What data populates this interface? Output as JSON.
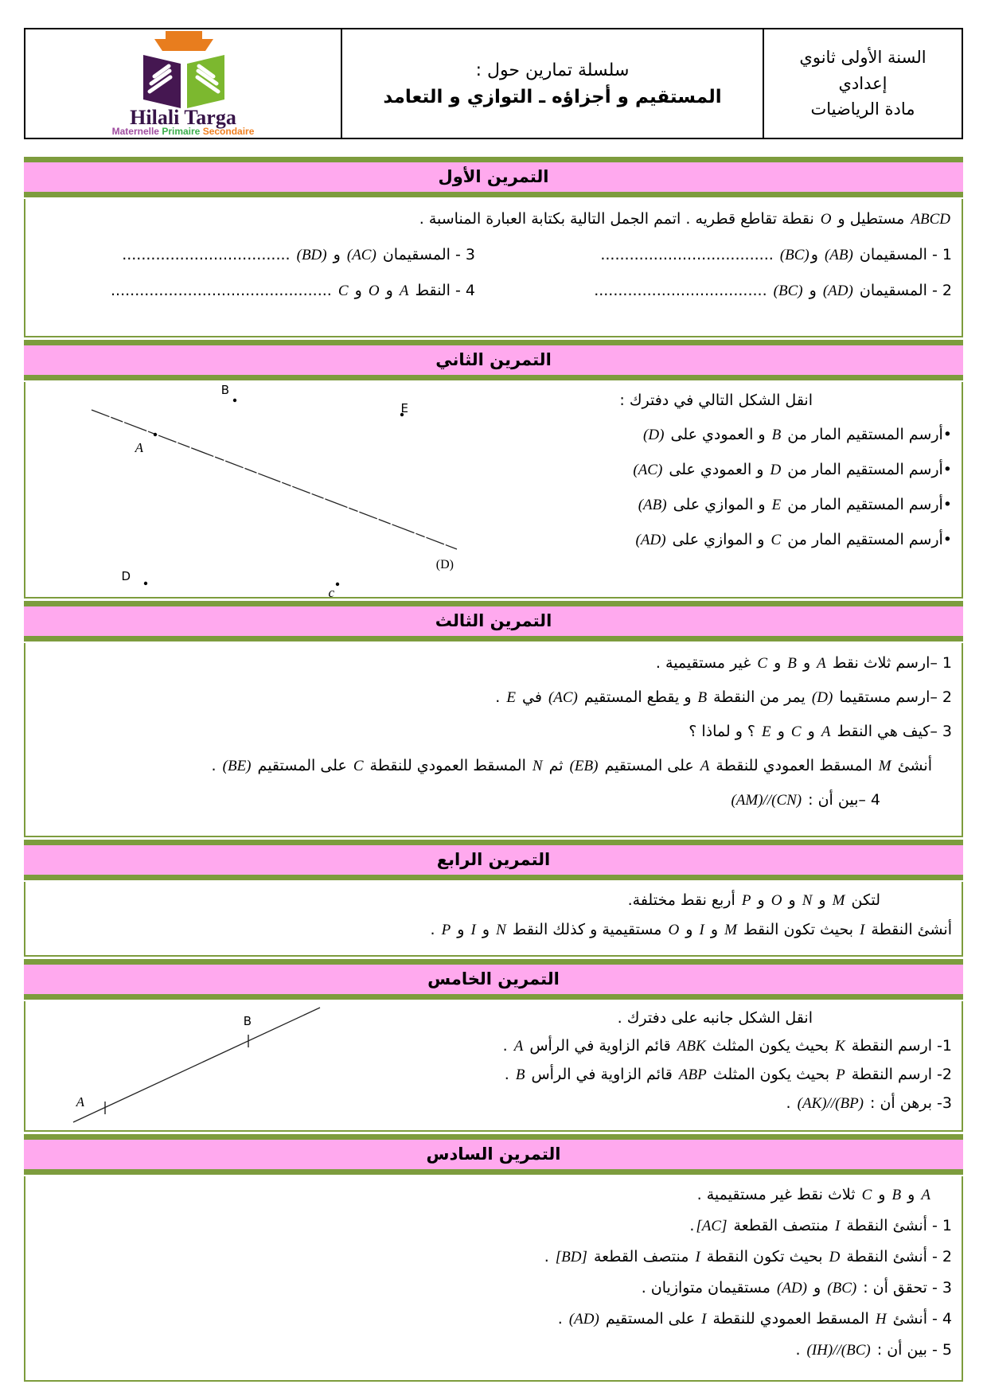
{
  "header": {
    "school": {
      "lines": [
        "السنة الأولى ثانوي",
        "إعدادي",
        "مادة الرياضيات"
      ]
    },
    "series": {
      "label": "سلسلة تمارين حول :",
      "title": "المستقيم و أجزاؤه ـ التوازي و التعامد"
    },
    "logo": {
      "name": "Hilali Targa",
      "tagline": [
        "Maternelle",
        "Primaire",
        "Secondaire"
      ]
    }
  },
  "colors": {
    "banner_pink": "#ffa9ee",
    "border_green": "#7d9c3d",
    "logo_purple": "#451751",
    "logo_green": "#7cb82f",
    "logo_orange": "#e87d1e",
    "tagline_purple": "#a04da0",
    "tagline_green": "#3bae4b",
    "tagline_orange": "#f08020"
  },
  "figures": {
    "ex2": {
      "line_label": "(D)",
      "points": {
        "A": "A",
        "B": "B",
        "C": "c",
        "D": "D",
        "E": "E"
      }
    },
    "ex5": {
      "points": {
        "A": "A",
        "B": "B"
      }
    }
  },
  "exercises": [
    {
      "title": "التمرين الأول",
      "lines": [
        {
          "seg": [
            {
              "m": "ABCD"
            },
            {
              "t": " مستطيل و "
            },
            {
              "m": "O"
            },
            {
              "t": " نقطة تقاطع قطريه . اتمم الجمل التالية بكتابة العبارة المناسبة ."
            }
          ]
        },
        {
          "cls": "split",
          "cells": [
            [
              {
                "t": "1 - المسقيمان "
              },
              {
                "m": "(AB)"
              },
              {
                "t": " و"
              },
              {
                "m": "(BC)"
              },
              {
                "t": "  ...................................."
              }
            ],
            [
              {
                "t": "3 - المسقيمان  "
              },
              {
                "m": "(AC)"
              },
              {
                "t": " و "
              },
              {
                "m": "(BD)"
              },
              {
                "t": " ..................................."
              }
            ]
          ]
        },
        {
          "cls": "split",
          "cells": [
            [
              {
                "t": "2 - المسقيمان  "
              },
              {
                "m": "(AD)"
              },
              {
                "t": " و "
              },
              {
                "m": "(BC)"
              },
              {
                "t": "  ...................................."
              }
            ],
            [
              {
                "t": "4 - النقط "
              },
              {
                "m": "A"
              },
              {
                "t": " و "
              },
              {
                "m": "O"
              },
              {
                "t": " و "
              },
              {
                "m": "C"
              },
              {
                "t": " .............................................."
              }
            ]
          ]
        }
      ]
    },
    {
      "title": "التمرين الثاني",
      "lines": [
        {
          "cls": "ind-lg",
          "seg": [
            {
              "t": "انقل الشكل التالي في دفترك :"
            }
          ]
        },
        {
          "seg": [
            {
              "t": "•أرسم المستقيم المار من "
            },
            {
              "m": "B"
            },
            {
              "t": "  و العمودي على "
            },
            {
              "m": "(D)"
            }
          ]
        },
        {
          "seg": [
            {
              "t": "•أرسم المستقيم المار من "
            },
            {
              "m": "D"
            },
            {
              "t": "  و العمودي على "
            },
            {
              "m": "(AC)"
            }
          ]
        },
        {
          "seg": [
            {
              "t": "•أرسم المستقيم المار من "
            },
            {
              "m": "E"
            },
            {
              "t": "  و الموازي على "
            },
            {
              "m": "(AB)"
            }
          ]
        },
        {
          "seg": [
            {
              "t": "•أرسم المستقيم المار من "
            },
            {
              "m": "C"
            },
            {
              "t": "  و الموازي على "
            },
            {
              "m": "(AD)"
            }
          ]
        }
      ]
    },
    {
      "title": "التمرين الثالث",
      "lines": [
        {
          "seg": [
            {
              "t": "1 –ارسم ثلاث نقط "
            },
            {
              "m": "A"
            },
            {
              "t": " و "
            },
            {
              "m": "B"
            },
            {
              "t": " و "
            },
            {
              "m": "C"
            },
            {
              "t": " غير مستقيمية ."
            }
          ]
        },
        {
          "seg": [
            {
              "t": "2 –ارسم مستقيما "
            },
            {
              "m": "(D)"
            },
            {
              "t": " يمر من النقطة "
            },
            {
              "m": "B"
            },
            {
              "t": " و يقطع المستقيم "
            },
            {
              "m": "(AC)"
            },
            {
              "t": " في "
            },
            {
              "m": "E"
            },
            {
              "t": " ."
            }
          ]
        },
        {
          "seg": [
            {
              "t": "3 –كيف هي النقط "
            },
            {
              "m": "A"
            },
            {
              "t": " و "
            },
            {
              "m": "C"
            },
            {
              "t": " و "
            },
            {
              "m": "E"
            },
            {
              "t": " ؟ و لماذا ؟"
            }
          ]
        },
        {
          "cls": "ind-sm",
          "seg": [
            {
              "t": "أنشئ "
            },
            {
              "m": "M"
            },
            {
              "t": " المسقط العمودي للنقطة "
            },
            {
              "m": "A"
            },
            {
              "t": " على المستقيم "
            },
            {
              "m": "(EB)"
            },
            {
              "t": " ثم "
            },
            {
              "m": "N"
            },
            {
              "t": " المسقط العمودي للنقطة "
            },
            {
              "m": "C"
            },
            {
              "t": " على المستقيم "
            },
            {
              "m": "(BE)"
            },
            {
              "t": " ."
            }
          ]
        },
        {
          "cls": "ind-md",
          "seg": [
            {
              "t": "4 –بين أن : "
            },
            {
              "m": "(AM)//(CN)"
            }
          ]
        }
      ]
    },
    {
      "title": "التمرين الرابع",
      "lines": [
        {
          "cls": "ind-md",
          "seg": [
            {
              "t": "لتكن  "
            },
            {
              "m": "M"
            },
            {
              "t": " و "
            },
            {
              "m": "N"
            },
            {
              "t": " و "
            },
            {
              "m": "O"
            },
            {
              "t": " و "
            },
            {
              "m": "P"
            },
            {
              "t": " أربع نقط مختلفة."
            }
          ]
        },
        {
          "seg": [
            {
              "t": "أنشئ النقطة "
            },
            {
              "m": "I"
            },
            {
              "t": " بحيث تكون النقط "
            },
            {
              "m": "M"
            },
            {
              "t": " و "
            },
            {
              "m": "I"
            },
            {
              "t": " و "
            },
            {
              "m": "O"
            },
            {
              "t": " مستقيمية و كذلك النقط "
            },
            {
              "m": "N"
            },
            {
              "t": " و "
            },
            {
              "m": "I"
            },
            {
              "t": " و "
            },
            {
              "m": "P"
            },
            {
              "t": " ."
            }
          ]
        }
      ]
    },
    {
      "title": "التمرين الخامس",
      "lines": [
        {
          "cls": "ind-lg",
          "seg": [
            {
              "t": "انقل الشكل جانبه على دفترك ."
            }
          ]
        },
        {
          "seg": [
            {
              "t": "1-  ارسم النقطة "
            },
            {
              "m": "K"
            },
            {
              "t": " بحيث يكون المثلث  "
            },
            {
              "m": "ABK"
            },
            {
              "t": "  قائم الزاوية في الرأس  "
            },
            {
              "m": "A"
            },
            {
              "t": " ."
            }
          ]
        },
        {
          "seg": [
            {
              "t": "2-  ارسم النقطة "
            },
            {
              "m": "P"
            },
            {
              "t": " بحيث يكون المثلث "
            },
            {
              "m": "ABP"
            },
            {
              "t": " قائم الزاوية في الرأس  "
            },
            {
              "m": "B"
            },
            {
              "t": " ."
            }
          ]
        },
        {
          "seg": [
            {
              "t": "3- برهن أن :  "
            },
            {
              "m": "(AK)//(BP)"
            },
            {
              "t": " ."
            }
          ]
        }
      ]
    },
    {
      "title": "التمرين السادس",
      "lines": [
        {
          "cls": "ind-sm",
          "seg": [
            {
              "m": "A"
            },
            {
              "t": " و "
            },
            {
              "m": "B"
            },
            {
              "t": " و "
            },
            {
              "m": "C"
            },
            {
              "t": " ثلاث نقط غير مستقيمية ."
            }
          ]
        },
        {
          "seg": [
            {
              "t": "1 -  أنشئ النقطة  "
            },
            {
              "m": "I"
            },
            {
              "t": " منتصف القطعة  "
            },
            {
              "m": "[AC]"
            },
            {
              "t": "."
            }
          ]
        },
        {
          "seg": [
            {
              "t": "2 -  أنشئ النقطة "
            },
            {
              "m": "D"
            },
            {
              "t": " بحيث تكون النقطة  "
            },
            {
              "m": "I"
            },
            {
              "t": "  منتصف القطعة  "
            },
            {
              "m": "[BD]"
            },
            {
              "t": "  ."
            }
          ]
        },
        {
          "seg": [
            {
              "t": "3 -  تحقق أن :  "
            },
            {
              "m": "(BC)"
            },
            {
              "t": "  و  "
            },
            {
              "m": "(AD)"
            },
            {
              "t": " مستقيمان متوازيان ."
            }
          ]
        },
        {
          "seg": [
            {
              "t": "4 -  أنشئ  "
            },
            {
              "m": "H"
            },
            {
              "t": "  المسقط العمودي للنقطة  "
            },
            {
              "m": "I"
            },
            {
              "t": "  على المستقيم  "
            },
            {
              "m": "(AD)"
            },
            {
              "t": " ."
            }
          ]
        },
        {
          "seg": [
            {
              "t": "5 - بين أن :  "
            },
            {
              "m": "(IH)//(BC)"
            },
            {
              "t": " ."
            }
          ]
        }
      ]
    }
  ]
}
